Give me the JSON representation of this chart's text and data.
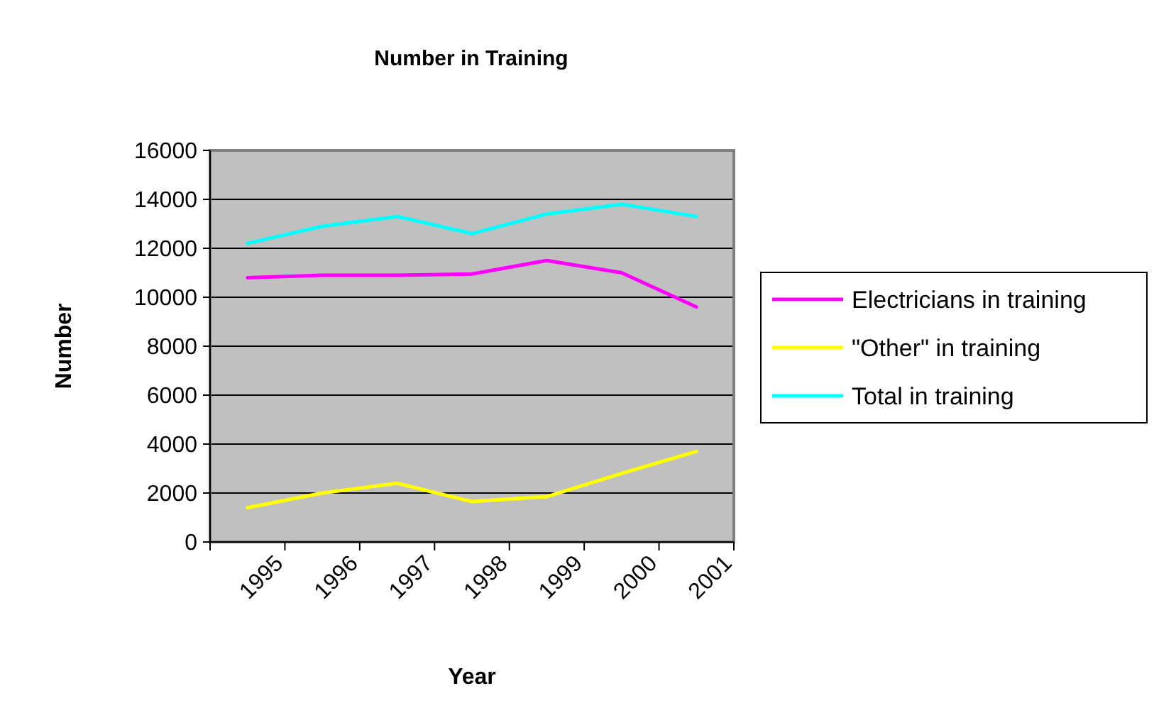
{
  "chart_data": {
    "type": "line",
    "title": "Number in Training",
    "xlabel": "Year",
    "ylabel": "Number",
    "categories": [
      "1995",
      "1996",
      "1997",
      "1998",
      "1999",
      "2000",
      "2001"
    ],
    "series": [
      {
        "name": "Electricians in training",
        "color": "#ff00ff",
        "values": [
          10800,
          10900,
          10900,
          10950,
          11500,
          11000,
          9600
        ]
      },
      {
        "name": "\"Other\" in training",
        "color": "#ffff00",
        "values": [
          1400,
          2000,
          2400,
          1650,
          1850,
          2800,
          3700
        ]
      },
      {
        "name": "Total in training",
        "color": "#00ffff",
        "values": [
          12200,
          12900,
          13300,
          12600,
          13400,
          13800,
          13300
        ]
      }
    ],
    "ylim": [
      0,
      16000
    ],
    "yticks": [
      0,
      2000,
      4000,
      6000,
      8000,
      10000,
      12000,
      14000,
      16000
    ],
    "grid": "y",
    "legend": "right",
    "marker": "none",
    "line_style": "solid"
  }
}
